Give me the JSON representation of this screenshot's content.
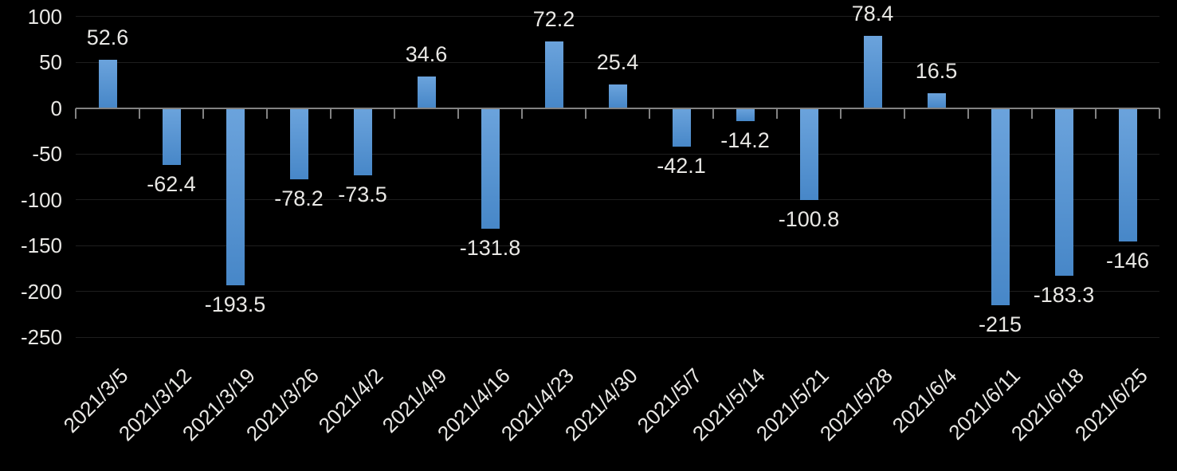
{
  "chart_data": {
    "type": "bar",
    "title": "",
    "xlabel": "",
    "ylabel": "",
    "categories": [
      "2021/3/5",
      "2021/3/12",
      "2021/3/19",
      "2021/3/26",
      "2021/4/2",
      "2021/4/9",
      "2021/4/16",
      "2021/4/23",
      "2021/4/30",
      "2021/5/7",
      "2021/5/14",
      "2021/5/21",
      "2021/5/28",
      "2021/6/4",
      "2021/6/11",
      "2021/6/18",
      "2021/6/25"
    ],
    "values": [
      52.6,
      -62.4,
      -193.5,
      -78.2,
      -73.5,
      34.6,
      -131.8,
      72.2,
      25.4,
      -42.1,
      -14.2,
      -100.8,
      78.4,
      16.5,
      -215,
      -183.3,
      -146
    ],
    "value_labels": [
      "52.6",
      "-62.4",
      "-193.5",
      "-78.2",
      "-73.5",
      "34.6",
      "-131.8",
      "72.2",
      "25.4",
      "-42.1",
      "-14.2",
      "-100.8",
      "78.4",
      "16.5",
      "-215",
      "-183.3",
      "-146"
    ],
    "ylim": [
      -250,
      100
    ],
    "y_ticks": [
      100,
      50,
      0,
      -50,
      -100,
      -150,
      -200,
      -250
    ],
    "y_tick_labels": [
      "100",
      "50",
      "0",
      "-50",
      "-100",
      "-150",
      "-200",
      "-250"
    ],
    "grid": true,
    "legend": false,
    "data_labels_visible": true,
    "x_label_rotation_deg": -45,
    "colors": {
      "background": "#000000",
      "bar_gradient_top": "#6ba3dc",
      "bar_gradient_bottom": "#4787c8",
      "gridline": "#1e1e1e",
      "axis_line": "#828282",
      "tick_label": "#e9e8e5",
      "data_label": "#e9e8e5"
    }
  }
}
